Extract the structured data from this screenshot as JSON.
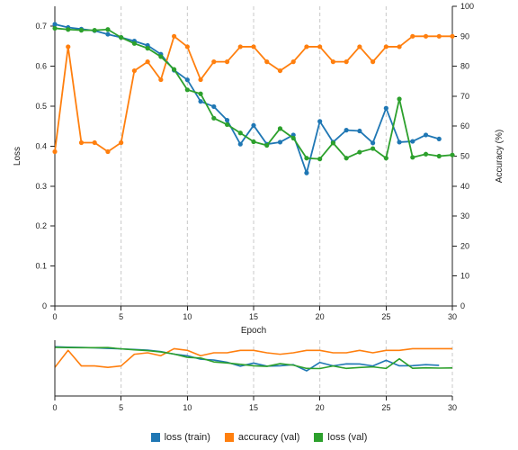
{
  "chart_data": {
    "type": "line",
    "xlabel": "Epoch",
    "ylabel": "Loss",
    "y2label": "Accuracy (%)",
    "xlim": [
      0,
      30
    ],
    "ylim": [
      0,
      0.75
    ],
    "y2lim": [
      0,
      100
    ],
    "xticks": [
      0,
      5,
      10,
      15,
      20,
      25,
      30
    ],
    "yticks": [
      0,
      0.1,
      0.2,
      0.3,
      0.4,
      0.5,
      0.6,
      0.7
    ],
    "y2ticks": [
      0,
      10,
      20,
      30,
      40,
      50,
      60,
      70,
      80,
      90,
      100
    ],
    "vertical_gridlines": [
      5,
      10,
      15,
      20,
      25,
      30
    ],
    "legend_position": "bottom",
    "series": [
      {
        "name": "loss (train)",
        "axis": "left",
        "color": "#1f77b4",
        "x": [
          0,
          1,
          2,
          3,
          4,
          5,
          6,
          7,
          8,
          9,
          10,
          11,
          12,
          13,
          14,
          15,
          16,
          17,
          18,
          19,
          20,
          21,
          22,
          23,
          24,
          25,
          26,
          27,
          28,
          29
        ],
        "values": [
          0.705,
          0.697,
          0.693,
          0.689,
          0.68,
          0.672,
          0.663,
          0.652,
          0.63,
          0.59,
          0.566,
          0.512,
          0.499,
          0.465,
          0.405,
          0.452,
          0.405,
          0.41,
          0.428,
          0.333,
          0.462,
          0.41,
          0.44,
          0.438,
          0.408,
          0.495,
          0.41,
          0.412,
          0.428,
          0.418
        ]
      },
      {
        "name": "accuracy (val)",
        "axis": "right",
        "color": "#ff7f0e",
        "x": [
          0,
          1,
          2,
          3,
          4,
          5,
          6,
          7,
          8,
          9,
          10,
          11,
          12,
          13,
          14,
          15,
          16,
          17,
          18,
          19,
          20,
          21,
          22,
          23,
          24,
          25,
          26,
          27,
          28,
          29,
          30
        ],
        "values": [
          51.5,
          86.5,
          54.5,
          54.5,
          51.5,
          54.5,
          78.5,
          81.5,
          75.5,
          90,
          86.5,
          75.5,
          81.5,
          81.5,
          86.5,
          86.5,
          81.5,
          78.5,
          81.5,
          86.5,
          86.5,
          81.5,
          81.5,
          86.5,
          81.5,
          86.5,
          86.5,
          90,
          90,
          90,
          90
        ]
      },
      {
        "name": "loss (val)",
        "axis": "left",
        "color": "#2ca02c",
        "x": [
          0,
          1,
          2,
          3,
          4,
          5,
          6,
          7,
          8,
          9,
          10,
          11,
          12,
          13,
          14,
          15,
          16,
          17,
          18,
          19,
          20,
          21,
          22,
          23,
          24,
          25,
          26,
          27,
          28,
          29,
          30
        ],
        "values": [
          0.695,
          0.692,
          0.69,
          0.69,
          0.692,
          0.672,
          0.657,
          0.645,
          0.624,
          0.592,
          0.541,
          0.531,
          0.47,
          0.454,
          0.433,
          0.411,
          0.402,
          0.444,
          0.42,
          0.37,
          0.368,
          0.408,
          0.37,
          0.385,
          0.394,
          0.37,
          0.518,
          0.372,
          0.38,
          0.375,
          0.378
        ]
      }
    ]
  }
}
